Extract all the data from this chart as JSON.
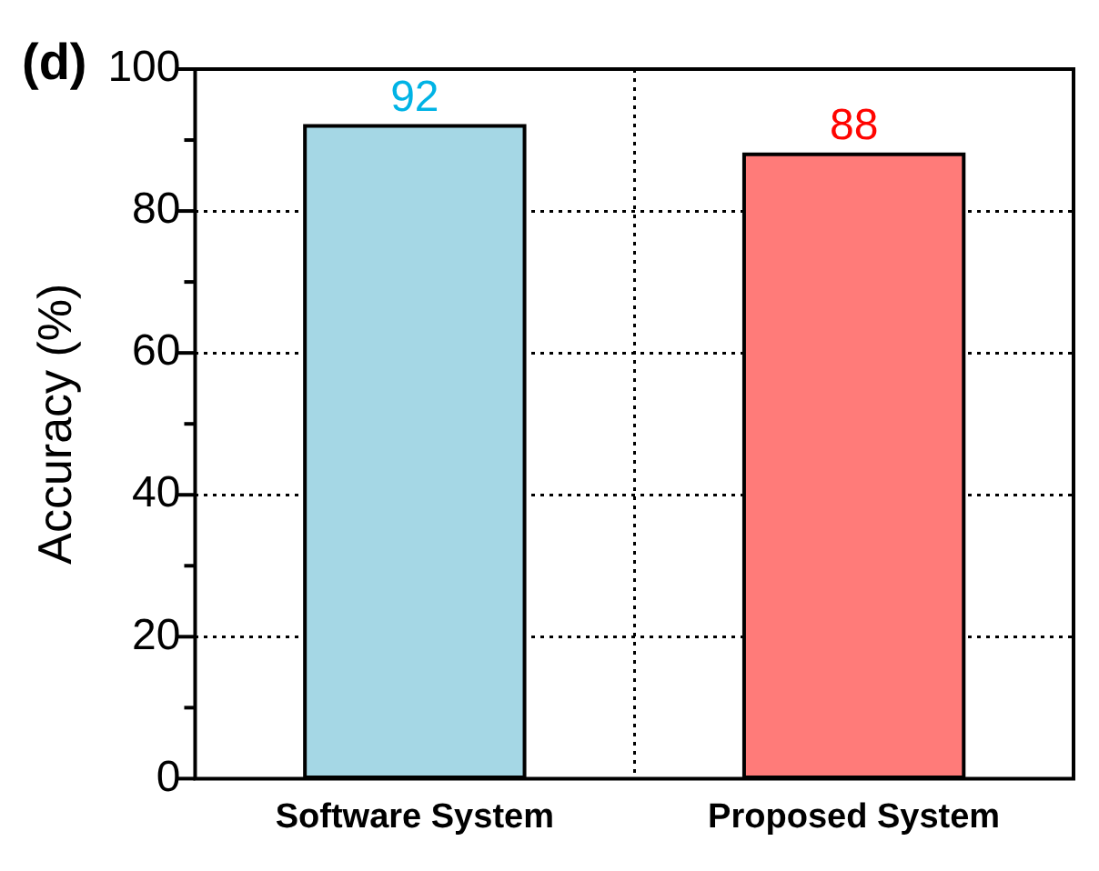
{
  "chart_data": {
    "type": "bar",
    "title": "(d)",
    "ylabel": "Accuracy (%)",
    "categories": [
      "Software System",
      "Proposed System"
    ],
    "values": [
      92,
      88
    ],
    "colors": [
      "#a5d7e5",
      "#ff7b79"
    ],
    "ylim": [
      0,
      100
    ],
    "yticks": [
      0,
      {
        "value": 10,
        "label": null
      },
      20,
      {
        "value": 30,
        "label": null
      },
      40,
      {
        "value": 50,
        "label": null
      },
      60,
      {
        "value": 70,
        "label": null
      },
      80,
      {
        "value": 90,
        "label": null
      },
      100
    ],
    "grid": true,
    "data_labels": true,
    "legend": false
  }
}
